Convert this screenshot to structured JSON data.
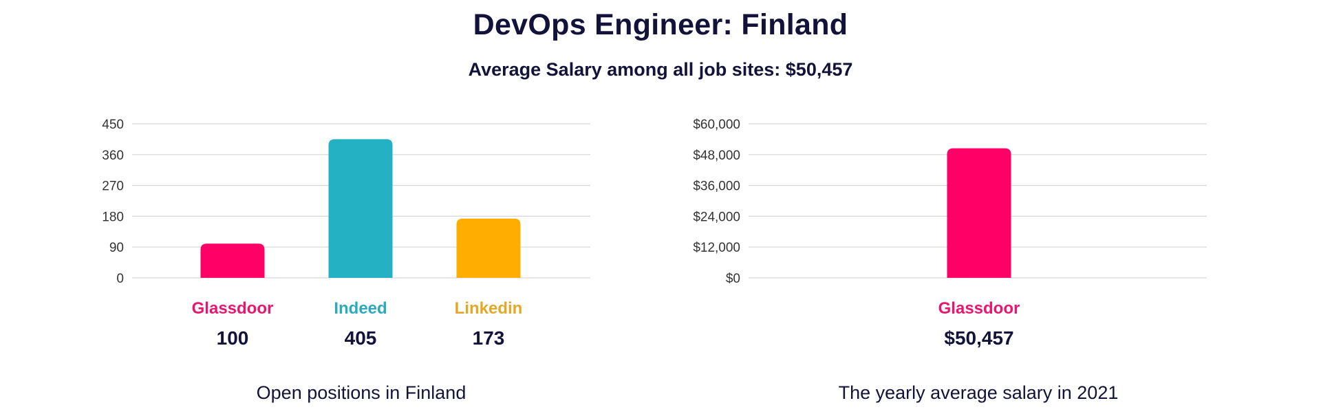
{
  "header": {
    "title": "DevOps Engineer: Finland",
    "subtitle": "Average Salary among all job sites: $50,457"
  },
  "chart_data": [
    {
      "type": "bar",
      "caption": "Open positions in Finland",
      "categories": [
        "Glassdoor",
        "Indeed",
        "Linkedin"
      ],
      "values": [
        100,
        405,
        173
      ],
      "value_labels": [
        "100",
        "405",
        "173"
      ],
      "colors": [
        "#ff0066",
        "#24b1c3",
        "#ffad00"
      ],
      "label_colors": [
        "#e8166e",
        "#2aabbd",
        "#e3a825"
      ],
      "yticks": [
        0,
        90,
        180,
        270,
        360,
        450
      ],
      "ytick_labels": [
        "0",
        "90",
        "180",
        "270",
        "360",
        "450"
      ],
      "ylim": [
        0,
        450
      ],
      "grid": true
    },
    {
      "type": "bar",
      "caption": "The yearly average salary in 2021",
      "categories": [
        "Glassdoor"
      ],
      "values": [
        50457
      ],
      "value_labels": [
        "$50,457"
      ],
      "colors": [
        "#ff0066"
      ],
      "label_colors": [
        "#e8166e"
      ],
      "yticks": [
        0,
        12000,
        24000,
        36000,
        48000,
        60000
      ],
      "ytick_labels": [
        "$0",
        "$12,000",
        "$24,000",
        "$36,000",
        "$48,000",
        "$60,000"
      ],
      "ylim": [
        0,
        60000
      ],
      "grid": true
    }
  ]
}
